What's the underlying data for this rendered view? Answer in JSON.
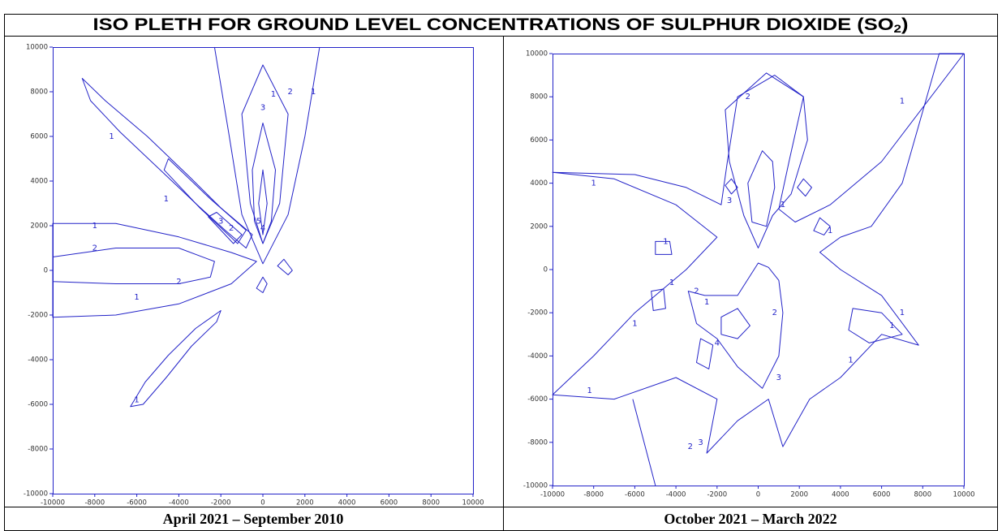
{
  "title_main": "ISO PLETH FOR GROUND LEVEL CONCENTRATIONS OF SULPHUR DIOXIDE (SO",
  "title_sub": "2",
  "title_end": ")",
  "plots": [
    {
      "caption": "April 2021 – September 2010",
      "xlim": [
        -10000,
        10000
      ],
      "ylim": [
        -10000,
        10000
      ],
      "xticks": [
        -10000,
        -8000,
        -6000,
        -4000,
        -2000,
        0,
        2000,
        4000,
        6000,
        8000,
        10000
      ],
      "yticks": [
        -10000,
        -8000,
        -6000,
        -4000,
        -2000,
        0,
        2000,
        4000,
        6000,
        8000,
        10000
      ],
      "contour_labels": [
        "1",
        "1",
        "1",
        "2",
        "3",
        "1",
        "2",
        "1",
        "2",
        "1",
        "2",
        "3",
        "4",
        "5",
        "1"
      ]
    },
    {
      "caption": "October 2021 – March 2022",
      "xlim": [
        -10000,
        10000
      ],
      "ylim": [
        -10000,
        10000
      ],
      "xticks": [
        -10000,
        -8000,
        -6000,
        -4000,
        -2000,
        0,
        2000,
        4000,
        6000,
        8000,
        10000
      ],
      "yticks": [
        -10000,
        -8000,
        -6000,
        -4000,
        -2000,
        0,
        2000,
        4000,
        6000,
        8000,
        10000
      ],
      "contour_labels": [
        "1",
        "1",
        "2",
        "1",
        "1",
        "1",
        "3",
        "1",
        "2",
        "1",
        "1",
        "1",
        "2",
        "4",
        "3",
        "3",
        "1",
        "2",
        "1",
        "1"
      ]
    }
  ]
}
